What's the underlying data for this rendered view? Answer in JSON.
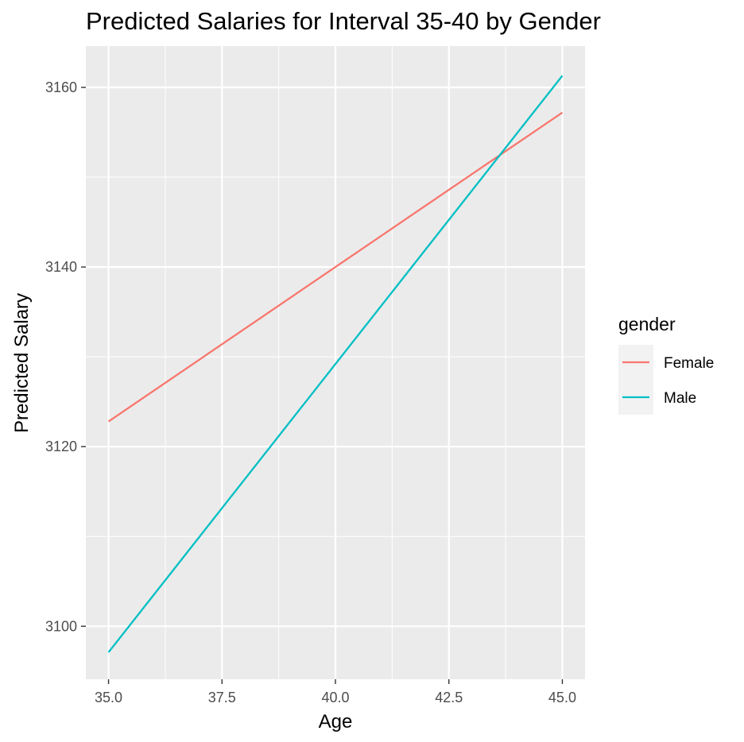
{
  "chart_data": {
    "type": "line",
    "title": "Predicted Salaries for Interval 35-40 by Gender",
    "xlabel": "Age",
    "ylabel": "Predicted Salary",
    "x": [
      35,
      45
    ],
    "xlim": [
      34.5,
      45.5
    ],
    "ylim": [
      3094.1,
      3164.6
    ],
    "x_ticks": [
      35.0,
      37.5,
      40.0,
      42.5,
      45.0
    ],
    "x_tick_labels": [
      "35.0",
      "37.5",
      "40.0",
      "42.5",
      "45.0"
    ],
    "y_ticks": [
      3100,
      3120,
      3140,
      3160
    ],
    "y_tick_labels": [
      "3100",
      "3120",
      "3140",
      "3160"
    ],
    "grid": true,
    "legend": {
      "title": "gender",
      "position": "right"
    },
    "series": [
      {
        "name": "Female",
        "color": "#F8766D",
        "x": [
          35,
          45
        ],
        "values": [
          3122.8,
          3157.2
        ]
      },
      {
        "name": "Male",
        "color": "#00BFC4",
        "x": [
          35,
          45
        ],
        "values": [
          3097.1,
          3161.3
        ]
      }
    ]
  }
}
